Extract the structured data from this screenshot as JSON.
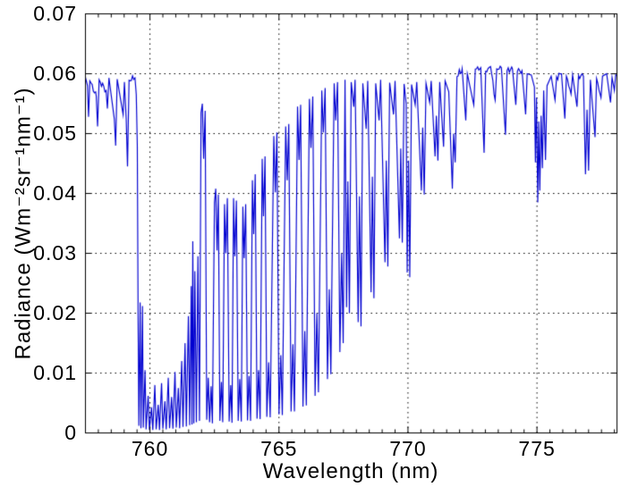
{
  "figure": {
    "background": "#ffffff",
    "axis_color": "#000000"
  },
  "chart_data": {
    "type": "line",
    "title": "",
    "xlabel": "Wavelength (nm)",
    "ylabel": "Radiance (Wm⁻²sr⁻¹nm⁻¹)",
    "xlim": [
      757.5,
      778.1
    ],
    "ylim": [
      0,
      0.07
    ],
    "xticks": {
      "values": [
        760,
        765,
        770,
        775
      ],
      "labels": [
        "760",
        "765",
        "770",
        "775"
      ]
    },
    "yticks": {
      "values": [
        0,
        0.01,
        0.02,
        0.03,
        0.04,
        0.05,
        0.06,
        0.07
      ],
      "labels": [
        "0",
        "0.01",
        "0.02",
        "0.03",
        "0.04",
        "0.05",
        "0.06",
        "0.07"
      ]
    },
    "x_minor_tick_step": 0.5,
    "grid": {
      "style": "dotted",
      "color": "#000000",
      "at_x": [
        760,
        765,
        770,
        775
      ],
      "at_y": [
        0.01,
        0.02,
        0.03,
        0.04,
        0.05,
        0.06
      ]
    },
    "legend": null,
    "series": [
      {
        "name": "radiance",
        "color": "#0000D0",
        "line_width": 1.15,
        "continuum_level": 0.06,
        "continuum_noise_amp": 0.0005,
        "anchors": [
          [
            757.5,
            0.0594
          ],
          [
            757.58,
            0.058
          ],
          [
            757.62,
            0.0528
          ],
          [
            757.67,
            0.0588
          ],
          [
            757.92,
            0.0562
          ],
          [
            757.97,
            0.0512
          ],
          [
            758.03,
            0.059
          ],
          [
            758.3,
            0.0572
          ],
          [
            758.35,
            0.0542
          ],
          [
            758.41,
            0.0593
          ],
          [
            758.62,
            0.0524
          ],
          [
            758.67,
            0.048
          ],
          [
            758.73,
            0.0591
          ],
          [
            758.96,
            0.0532
          ],
          [
            759.01,
            0.0586
          ],
          [
            759.08,
            0.0524
          ],
          [
            759.13,
            0.0445
          ],
          [
            759.19,
            0.0589
          ],
          [
            759.42,
            0.0593
          ],
          [
            759.47,
            0.0565
          ],
          [
            759.51,
            0.048
          ],
          [
            759.54,
            0.02
          ],
          [
            759.57,
            0.0012
          ],
          [
            759.62,
            0.0218
          ],
          [
            759.65,
            0.0008
          ],
          [
            759.71,
            0.0212
          ],
          [
            759.74,
            0.0009
          ],
          [
            759.81,
            0.0105
          ],
          [
            759.85,
            0.0006
          ],
          [
            759.93,
            0.0062
          ],
          [
            759.98,
            0.0005
          ],
          [
            760.06,
            0.0043
          ],
          [
            760.11,
            0.0005
          ],
          [
            760.19,
            0.008
          ],
          [
            760.24,
            0.0006
          ],
          [
            760.32,
            0.0047
          ],
          [
            760.37,
            0.0005
          ],
          [
            760.45,
            0.0083
          ],
          [
            760.5,
            0.0007
          ],
          [
            760.58,
            0.0053
          ],
          [
            760.63,
            0.0006
          ],
          [
            760.71,
            0.0092
          ],
          [
            760.76,
            0.0008
          ],
          [
            760.84,
            0.006
          ],
          [
            760.89,
            0.0007
          ],
          [
            760.97,
            0.0102
          ],
          [
            761.02,
            0.0009
          ],
          [
            761.1,
            0.0075
          ],
          [
            761.15,
            0.0008
          ],
          [
            761.23,
            0.012
          ],
          [
            761.28,
            0.001
          ],
          [
            761.36,
            0.015
          ],
          [
            761.41,
            0.0011
          ],
          [
            761.49,
            0.0195
          ],
          [
            761.54,
            0.0013
          ],
          [
            761.6,
            0.0245
          ],
          [
            761.63,
            0.0014
          ],
          [
            761.66,
            0.032
          ],
          [
            761.7,
            0.0016
          ],
          [
            761.74,
            0.027
          ],
          [
            761.8,
            0.0018
          ],
          [
            761.86,
            0.0295
          ],
          [
            761.92,
            0.002
          ],
          [
            761.98,
            0.0535
          ],
          [
            762.03,
            0.055
          ],
          [
            762.08,
            0.0458
          ],
          [
            762.14,
            0.0538
          ],
          [
            762.2,
            0.0022
          ],
          [
            762.26,
            0.0092
          ],
          [
            762.31,
            0.0018
          ],
          [
            762.37,
            0.0078
          ],
          [
            762.42,
            0.0016
          ],
          [
            762.5,
            0.0385
          ],
          [
            762.55,
            0.0408
          ],
          [
            762.6,
            0.0305
          ],
          [
            762.65,
            0.0398
          ],
          [
            762.71,
            0.002
          ],
          [
            762.77,
            0.0085
          ],
          [
            762.82,
            0.0018
          ],
          [
            762.89,
            0.0382
          ],
          [
            762.94,
            0.03
          ],
          [
            763.0,
            0.0392
          ],
          [
            763.07,
            0.0019
          ],
          [
            763.13,
            0.008
          ],
          [
            763.18,
            0.0017
          ],
          [
            763.24,
            0.0392
          ],
          [
            763.29,
            0.0295
          ],
          [
            763.35,
            0.0388
          ],
          [
            763.42,
            0.002
          ],
          [
            763.48,
            0.009
          ],
          [
            763.54,
            0.0019
          ],
          [
            763.6,
            0.0378
          ],
          [
            763.65,
            0.0292
          ],
          [
            763.71,
            0.0382
          ],
          [
            763.78,
            0.0021
          ],
          [
            763.84,
            0.0095
          ],
          [
            763.9,
            0.002
          ],
          [
            763.97,
            0.0422
          ],
          [
            764.02,
            0.0332
          ],
          [
            764.08,
            0.0432
          ],
          [
            764.15,
            0.0024
          ],
          [
            764.21,
            0.0105
          ],
          [
            764.27,
            0.0023
          ],
          [
            764.35,
            0.0458
          ],
          [
            764.4,
            0.0362
          ],
          [
            764.46,
            0.0462
          ],
          [
            764.53,
            0.0027
          ],
          [
            764.6,
            0.0118
          ],
          [
            764.66,
            0.0026
          ],
          [
            764.8,
            0.0496
          ],
          [
            764.86,
            0.0402
          ],
          [
            764.92,
            0.0502
          ],
          [
            765.0,
            0.0031
          ],
          [
            765.07,
            0.013
          ],
          [
            765.13,
            0.003
          ],
          [
            765.26,
            0.0512
          ],
          [
            765.32,
            0.0422
          ],
          [
            765.38,
            0.0516
          ],
          [
            765.47,
            0.0036
          ],
          [
            765.54,
            0.0148
          ],
          [
            765.6,
            0.0036
          ],
          [
            765.72,
            0.0545
          ],
          [
            765.78,
            0.0456
          ],
          [
            765.84,
            0.0548
          ],
          [
            765.93,
            0.0044
          ],
          [
            766.0,
            0.017
          ],
          [
            766.06,
            0.0046
          ],
          [
            766.18,
            0.0558
          ],
          [
            766.24,
            0.0476
          ],
          [
            766.31,
            0.0562
          ],
          [
            766.4,
            0.0062
          ],
          [
            766.47,
            0.02
          ],
          [
            766.53,
            0.0068
          ],
          [
            766.66,
            0.0572
          ],
          [
            766.72,
            0.0502
          ],
          [
            766.79,
            0.0576
          ],
          [
            766.88,
            0.009
          ],
          [
            766.95,
            0.024
          ],
          [
            767.01,
            0.0098
          ],
          [
            767.14,
            0.0584
          ],
          [
            767.2,
            0.0522
          ],
          [
            767.27,
            0.0586
          ],
          [
            767.36,
            0.0135
          ],
          [
            767.43,
            0.03
          ],
          [
            767.49,
            0.015
          ],
          [
            767.56,
            0.059
          ],
          [
            767.62,
            0.021
          ],
          [
            767.67,
            0.042
          ],
          [
            767.73,
            0.02
          ],
          [
            767.8,
            0.0586
          ],
          [
            767.9,
            0.0545
          ],
          [
            767.95,
            0.059
          ],
          [
            768.07,
            0.0185
          ],
          [
            768.12,
            0.0395
          ],
          [
            768.18,
            0.0178
          ],
          [
            768.25,
            0.0584
          ],
          [
            768.38,
            0.0508
          ],
          [
            768.44,
            0.0588
          ],
          [
            768.57,
            0.0235
          ],
          [
            768.62,
            0.0428
          ],
          [
            768.68,
            0.0225
          ],
          [
            768.75,
            0.0584
          ],
          [
            768.88,
            0.0522
          ],
          [
            768.94,
            0.059
          ],
          [
            769.11,
            0.0285
          ],
          [
            769.16,
            0.0455
          ],
          [
            769.22,
            0.0278
          ],
          [
            769.29,
            0.0585
          ],
          [
            769.44,
            0.0532
          ],
          [
            769.5,
            0.0588
          ],
          [
            769.67,
            0.0325
          ],
          [
            769.72,
            0.0475
          ],
          [
            769.78,
            0.0318
          ],
          [
            769.85,
            0.0583
          ],
          [
            769.93,
            0.055
          ],
          [
            769.97,
            0.0268
          ],
          [
            770.02,
            0.0455
          ],
          [
            770.07,
            0.026
          ],
          [
            770.14,
            0.0582
          ],
          [
            770.28,
            0.0548
          ],
          [
            770.34,
            0.0586
          ],
          [
            770.52,
            0.0405
          ],
          [
            770.57,
            0.051
          ],
          [
            770.63,
            0.0398
          ],
          [
            770.7,
            0.0584
          ],
          [
            770.84,
            0.0552
          ],
          [
            770.9,
            0.0588
          ],
          [
            771.05,
            0.0462
          ],
          [
            771.1,
            0.053
          ],
          [
            771.16,
            0.0455
          ],
          [
            771.23,
            0.0586
          ],
          [
            771.38,
            0.0478
          ],
          [
            771.44,
            0.0588
          ],
          [
            771.58,
            0.057
          ],
          [
            771.72,
            0.0408
          ],
          [
            771.77,
            0.05
          ],
          [
            771.83,
            0.0452
          ],
          [
            771.9,
            0.0595
          ],
          [
            772.1,
            0.0608
          ],
          [
            772.24,
            0.0522
          ],
          [
            772.3,
            0.06
          ],
          [
            772.55,
            0.0548
          ],
          [
            772.61,
            0.0608
          ],
          [
            772.82,
            0.061
          ],
          [
            772.95,
            0.0468
          ],
          [
            773.01,
            0.0604
          ],
          [
            773.2,
            0.0612
          ],
          [
            773.38,
            0.0556
          ],
          [
            773.44,
            0.0608
          ],
          [
            773.62,
            0.061
          ],
          [
            773.78,
            0.0498
          ],
          [
            773.84,
            0.0605
          ],
          [
            774.05,
            0.0608
          ],
          [
            774.18,
            0.0548
          ],
          [
            774.24,
            0.0604
          ],
          [
            774.42,
            0.0605
          ],
          [
            774.56,
            0.0532
          ],
          [
            774.62,
            0.06
          ],
          [
            774.78,
            0.0598
          ],
          [
            774.9,
            0.0578
          ],
          [
            774.94,
            0.0452
          ],
          [
            774.98,
            0.056
          ],
          [
            775.03,
            0.0385
          ],
          [
            775.07,
            0.052
          ],
          [
            775.11,
            0.0405
          ],
          [
            775.16,
            0.053
          ],
          [
            775.21,
            0.0442
          ],
          [
            775.26,
            0.0572
          ],
          [
            775.33,
            0.0456
          ],
          [
            775.39,
            0.058
          ],
          [
            775.55,
            0.0596
          ],
          [
            775.7,
            0.0556
          ],
          [
            775.76,
            0.0595
          ],
          [
            775.95,
            0.06
          ],
          [
            776.08,
            0.0525
          ],
          [
            776.14,
            0.0596
          ],
          [
            776.32,
            0.0566
          ],
          [
            776.38,
            0.0598
          ],
          [
            776.55,
            0.0545
          ],
          [
            776.61,
            0.0597
          ],
          [
            776.8,
            0.0596
          ],
          [
            776.88,
            0.0432
          ],
          [
            776.94,
            0.054
          ],
          [
            777.0,
            0.0438
          ],
          [
            777.07,
            0.059
          ],
          [
            777.25,
            0.0494
          ],
          [
            777.31,
            0.0592
          ],
          [
            777.48,
            0.056
          ],
          [
            777.54,
            0.0596
          ],
          [
            777.7,
            0.06
          ],
          [
            777.85,
            0.0552
          ],
          [
            777.91,
            0.0594
          ],
          [
            778.0,
            0.0572
          ],
          [
            778.05,
            0.0598
          ],
          [
            778.1,
            0.0597
          ]
        ]
      }
    ]
  }
}
